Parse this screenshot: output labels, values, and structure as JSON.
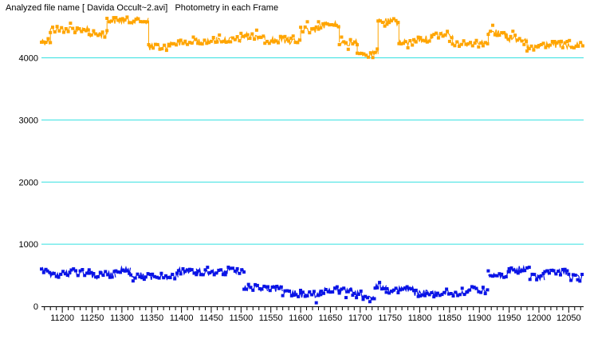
{
  "window": {
    "title": "Analyzed file name [ Davida Occult~2.avi]   Photometry in each Frame"
  },
  "chart_data": {
    "type": "scatter",
    "title": "Analyzed file name [ Davida Occult~2.avi]   Photometry in each Frame",
    "xlabel": "",
    "ylabel": "",
    "xlim": [
      11165,
      12075
    ],
    "ylim": [
      0,
      4700
    ],
    "xticks": [
      11200,
      11250,
      11300,
      11350,
      11400,
      11450,
      11500,
      11550,
      11600,
      11650,
      11700,
      11750,
      11800,
      11850,
      11900,
      11950,
      12000,
      12050
    ],
    "yticks": [
      0,
      1000,
      2000,
      3000,
      4000
    ],
    "grid": "horizontal",
    "grid_color": "#33e0e0",
    "series": [
      {
        "color": "#ffa500",
        "connected_gaps": true,
        "segments": [
          {
            "x": [
              11165,
              11180
            ],
            "y": 4270
          },
          {
            "x": [
              11180,
              11245
            ],
            "y": 4460
          },
          {
            "x": [
              11245,
              11275
            ],
            "y": 4380
          },
          {
            "x": [
              11275,
              11345
            ],
            "y": 4600
          },
          {
            "x": [
              11345,
              11380
            ],
            "y": 4170
          },
          {
            "x": [
              11380,
              11420
            ],
            "y": 4230
          },
          {
            "x": [
              11420,
              11460
            ],
            "y": 4280
          },
          {
            "x": [
              11460,
              11500
            ],
            "y": 4290
          },
          {
            "x": [
              11500,
              11540
            ],
            "y": 4350
          },
          {
            "x": [
              11540,
              11580
            ],
            "y": 4290
          },
          {
            "x": [
              11580,
              11600
            ],
            "y": 4260
          },
          {
            "x": [
              11600,
              11630
            ],
            "y": 4440
          },
          {
            "x": [
              11630,
              11665
            ],
            "y": 4530
          },
          {
            "x": [
              11665,
              11695
            ],
            "y": 4250
          },
          {
            "x": [
              11695,
              11730
            ],
            "y": 4060
          },
          {
            "x": [
              11730,
              11765
            ],
            "y": 4580
          },
          {
            "x": [
              11765,
              11790
            ],
            "y": 4240
          },
          {
            "x": [
              11790,
              11820
            ],
            "y": 4300
          },
          {
            "x": [
              11820,
              11855
            ],
            "y": 4370
          },
          {
            "x": [
              11855,
              11895
            ],
            "y": 4240
          },
          {
            "x": [
              11895,
              11915
            ],
            "y": 4230
          },
          {
            "x": [
              11915,
              11945
            ],
            "y": 4410
          },
          {
            "x": [
              11945,
              11980
            ],
            "y": 4310
          },
          {
            "x": [
              11980,
              12000
            ],
            "y": 4150
          },
          {
            "x": [
              12000,
              12040
            ],
            "y": 4210
          },
          {
            "x": [
              12040,
              12075
            ],
            "y": 4190
          }
        ]
      },
      {
        "color": "#0a14e6",
        "connected_gaps": false,
        "segments": [
          {
            "x": [
              11165,
              11175
            ],
            "y": 570
          },
          {
            "x": [
              11175,
              11215
            ],
            "y": 520
          },
          {
            "x": [
              11215,
              11245
            ],
            "y": 550
          },
          {
            "x": [
              11245,
              11265
            ],
            "y": 490
          },
          {
            "x": [
              11265,
              11290
            ],
            "y": 510
          },
          {
            "x": [
              11290,
              11315
            ],
            "y": 580
          },
          {
            "x": [
              11315,
              11340
            ],
            "y": 490
          },
          {
            "x": [
              11340,
              11395
            ],
            "y": 480
          },
          {
            "x": [
              11395,
              11425
            ],
            "y": 570
          },
          {
            "x": [
              11425,
              11475
            ],
            "y": 550
          },
          {
            "x": [
              11475,
              11505
            ],
            "y": 580
          },
          {
            "x": [
              11505,
              11545
            ],
            "y": 300
          },
          {
            "x": [
              11545,
              11570
            ],
            "y": 290
          },
          {
            "x": [
              11570,
              11600
            ],
            "y": 200
          },
          {
            "x": [
              11600,
              11635
            ],
            "y": 190
          },
          {
            "x": [
              11635,
              11665
            ],
            "y": 260
          },
          {
            "x": [
              11665,
              11690
            ],
            "y": 240
          },
          {
            "x": [
              11690,
              11705
            ],
            "y": 190
          },
          {
            "x": [
              11705,
              11725
            ],
            "y": 120
          },
          {
            "x": [
              11725,
              11745
            ],
            "y": 330
          },
          {
            "x": [
              11745,
              11790
            ],
            "y": 270
          },
          {
            "x": [
              11790,
              11830
            ],
            "y": 210
          },
          {
            "x": [
              11830,
              11880
            ],
            "y": 220
          },
          {
            "x": [
              11880,
              11915
            ],
            "y": 260
          },
          {
            "x": [
              11915,
              11950
            ],
            "y": 500
          },
          {
            "x": [
              11950,
              11985
            ],
            "y": 590
          },
          {
            "x": [
              11985,
              12010
            ],
            "y": 470
          },
          {
            "x": [
              12010,
              12050
            ],
            "y": 550
          },
          {
            "x": [
              12050,
              12075
            ],
            "y": 460
          }
        ]
      }
    ]
  }
}
